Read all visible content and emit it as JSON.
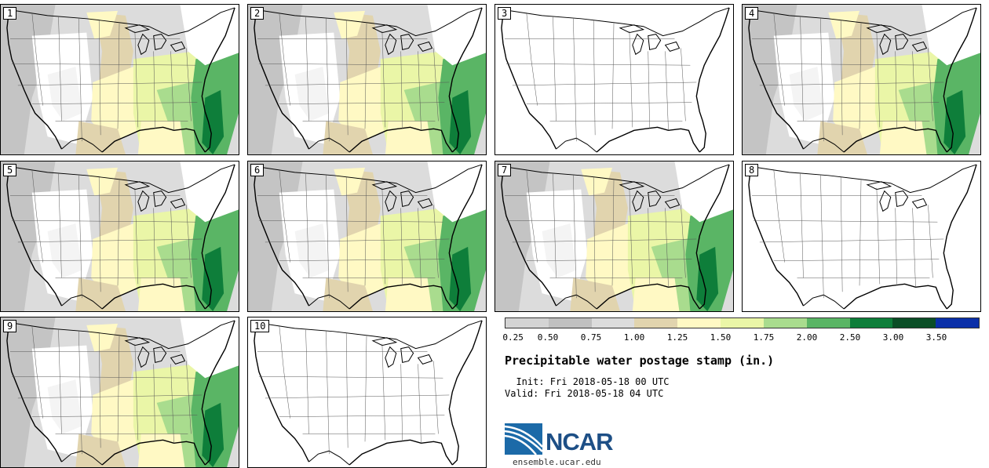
{
  "panels": [
    {
      "label": "1",
      "data": true
    },
    {
      "label": "2",
      "data": true
    },
    {
      "label": "3",
      "data": false
    },
    {
      "label": "4",
      "data": true
    },
    {
      "label": "5",
      "data": true
    },
    {
      "label": "6",
      "data": true
    },
    {
      "label": "7",
      "data": true
    },
    {
      "label": "8",
      "data": false
    },
    {
      "label": "9",
      "data": true
    },
    {
      "label": "10",
      "data": false
    }
  ],
  "legend": {
    "colors": [
      "#d4d4d4",
      "#c0c0c0",
      "#dcdcdc",
      "#e1d4ae",
      "#fff9c4",
      "#eaf6a7",
      "#a9dc8e",
      "#5ab565",
      "#0e7e3a",
      "#0b4e26",
      "#0a2fa8"
    ],
    "ticks": [
      "0.25",
      "0.50",
      "0.75",
      "1.00",
      "1.25",
      "1.50",
      "1.75",
      "2.00",
      "2.50",
      "3.00",
      "3.50"
    ]
  },
  "title": "Precipitable water postage stamp (in.)",
  "init": "Init: Fri 2018-05-18 00 UTC",
  "valid": "Valid: Fri 2018-05-18 04 UTC",
  "logo": {
    "name": "NCAR",
    "site": "ensemble.ucar.edu"
  }
}
